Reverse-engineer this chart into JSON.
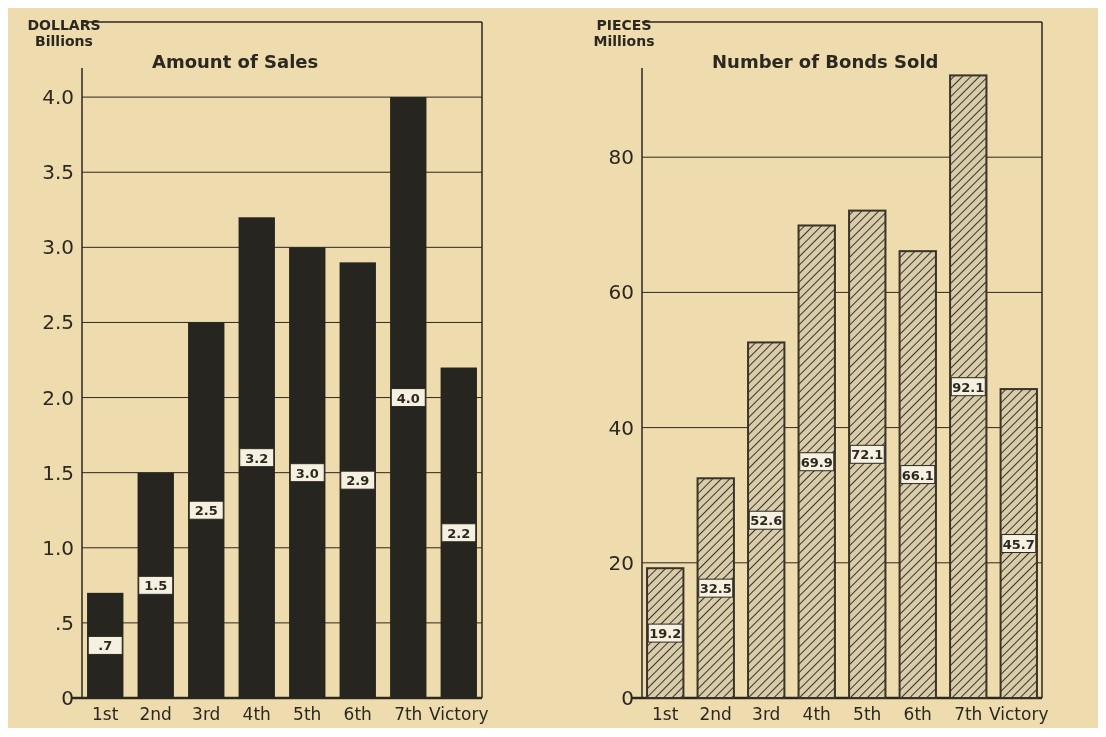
{
  "chart_data": [
    {
      "type": "bar",
      "title": "Amount of Sales",
      "ylabel": "DOLLARS\nBillions",
      "categories": [
        "1st",
        "2nd",
        "3rd",
        "4th",
        "5th",
        "6th",
        "7th",
        "Victory"
      ],
      "series": [
        {
          "color": "#26251f",
          "values": [
            0.7,
            1.5,
            2.5,
            3.2,
            3.0,
            2.9,
            4.0,
            2.2
          ],
          "value_labels": [
            ".7",
            "1.5",
            "2.5",
            "3.2",
            "3.0",
            "2.9",
            "4.0",
            "2.2"
          ]
        }
      ],
      "ylim": [
        0,
        4.5
      ],
      "yticks": [
        0,
        {
          "value": 0.5,
          "label": ".5"
        },
        {
          "value": 1,
          "label": "1.0"
        },
        {
          "value": 1.5,
          "label": "1.5"
        },
        {
          "value": 2,
          "label": "2.0"
        },
        {
          "value": 2.5,
          "label": "2.5"
        },
        {
          "value": 3,
          "label": "3.0"
        },
        {
          "value": 3.5,
          "label": "3.5"
        },
        {
          "value": 4,
          "label": "4.0"
        }
      ],
      "grid": "y"
    },
    {
      "type": "bar",
      "title": "Number of Bonds Sold",
      "ylabel": "PIECES\nMillions",
      "categories": [
        "1st",
        "2nd",
        "3rd",
        "4th",
        "5th",
        "6th",
        "7th",
        "Victory"
      ],
      "series": [
        {
          "color": "#3a3428",
          "values": [
            19.2,
            32.5,
            52.6,
            69.9,
            72.1,
            66.1,
            92.1,
            45.7
          ]
        }
      ],
      "data_labels": true,
      "ylim": [
        0,
        100
      ],
      "yticks": [
        0,
        20,
        40,
        60,
        80
      ],
      "grid": "y"
    }
  ]
}
